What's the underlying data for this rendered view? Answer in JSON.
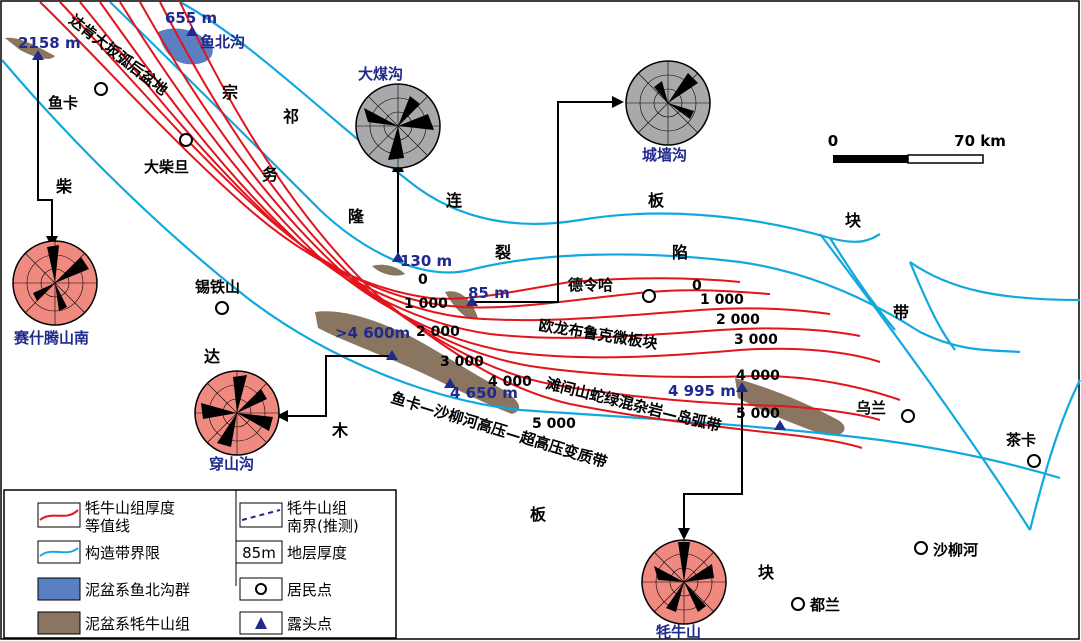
{
  "map": {
    "zone_labels": {
      "zongwulong": [
        "宗",
        "祁",
        "务",
        "隆"
      ],
      "lianlie": [
        "连",
        "裂"
      ],
      "banxian": [
        "板",
        "陷"
      ],
      "blockbelt": [
        "块",
        "带"
      ],
      "qaidam": "柴",
      "tarim": [
        "达",
        "木"
      ],
      "bankuai": [
        "板",
        "块"
      ]
    },
    "basin_label": "达肯大坂弧后盆地",
    "belts": {
      "oulongbuluke": "欧龙布鲁克微板块",
      "tanjianshan": "滩间山蛇绿混杂岩—岛弧带",
      "yuka_shaliu": "鱼卡—沙柳河高压—超高压变质带"
    },
    "towns": [
      "鱼卡",
      "大柴旦",
      "锡铁山",
      "德令哈",
      "乌兰",
      "茶卡",
      "沙柳河",
      "都兰"
    ],
    "outcrops": {
      "yubeigou": {
        "name": "鱼北沟",
        "thickness": "655 m"
      },
      "saishiteng": {
        "name": "赛什腾山南",
        "thickness": "2158 m"
      },
      "dameigou": {
        "name": "大煤沟",
        "thickness": "130 m"
      },
      "chengqianggou": {
        "name": "城墙沟",
        "thickness": "85 m"
      },
      "chuanshangou": {
        "name": "穿山沟",
        "thickness": ">4 600m"
      },
      "p4650": {
        "thickness": "4 650 m"
      },
      "maoniushan": {
        "name": "牦牛山",
        "thickness": "4 995 m"
      }
    },
    "contour_values": [
      "0",
      "1 000",
      "2 000",
      "3 000",
      "4 000",
      "5 000"
    ],
    "scale": {
      "start": "0",
      "end": "70 km"
    },
    "colors": {
      "contour": "#e2141c",
      "boundary": "#11a8e0",
      "yubeigou_group": "#5a7fc2",
      "maoniushan_group": "#8a7560",
      "rose_red": "#f08a80",
      "rose_gray": "#a7a9ab"
    }
  },
  "legend": {
    "contour": [
      "牦牛山组厚度",
      "等值线"
    ],
    "south_boundary": [
      "牦牛山组",
      "南界(推测)"
    ],
    "structural_boundary": "构造带界限",
    "thickness_box": "85m",
    "thickness_label": "地层厚度",
    "yubeigou": "泥盆系鱼北沟群",
    "settlement": "居民点",
    "maoniushan": "泥盆系牦牛山组",
    "outcrop": "露头点"
  }
}
